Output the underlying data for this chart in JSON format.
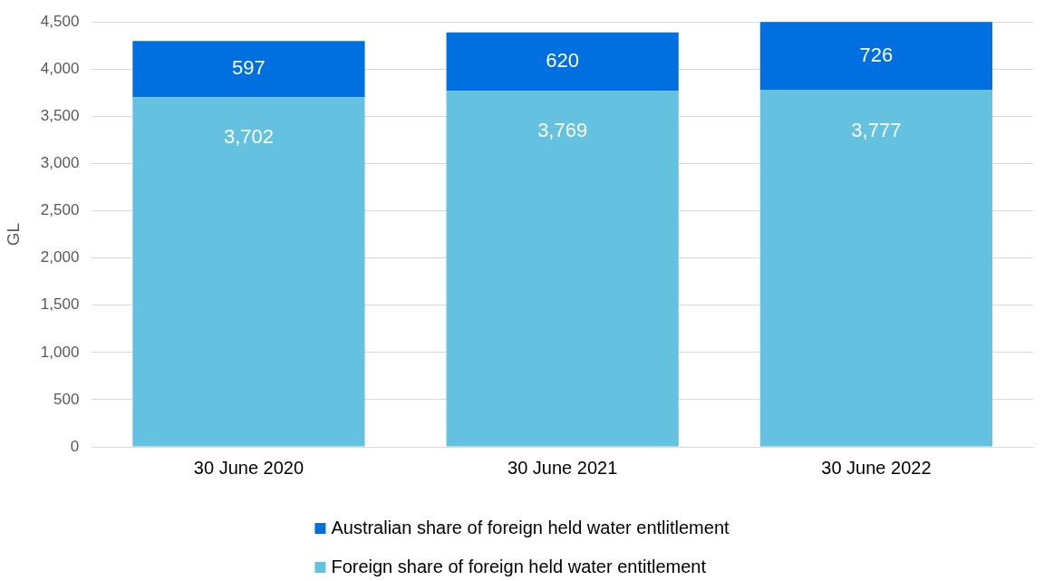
{
  "chart_data": {
    "type": "bar",
    "stacked": true,
    "ylabel": "GL",
    "categories": [
      "30 June 2020",
      "30 June 2021",
      "30 June 2022"
    ],
    "series": [
      {
        "name": "Foreign share of foreign held water entitlement",
        "color": "#64c1e0",
        "values": [
          3702,
          3769,
          3777
        ],
        "value_labels": [
          "3,702",
          "3,769",
          "3,777"
        ]
      },
      {
        "name": "Australian share of foreign held water entlitlement",
        "color": "#0070e0",
        "values": [
          597,
          620,
          726
        ],
        "value_labels": [
          "597",
          "620",
          "726"
        ]
      }
    ],
    "ylim": [
      0,
      4500
    ],
    "yticks": [
      0,
      500,
      {
        "value": 1000,
        "label": "1,000"
      },
      {
        "value": 1500,
        "label": "1,500"
      },
      {
        "value": 2000,
        "label": "2,000"
      },
      {
        "value": 2500,
        "label": "2,500"
      },
      {
        "value": 3000,
        "label": "3,000"
      },
      {
        "value": 3500,
        "label": "3,500"
      },
      {
        "value": 4000,
        "label": "4,000"
      },
      {
        "value": 4500,
        "label": "4,500"
      }
    ],
    "grid": "y",
    "legend": "bottom"
  }
}
